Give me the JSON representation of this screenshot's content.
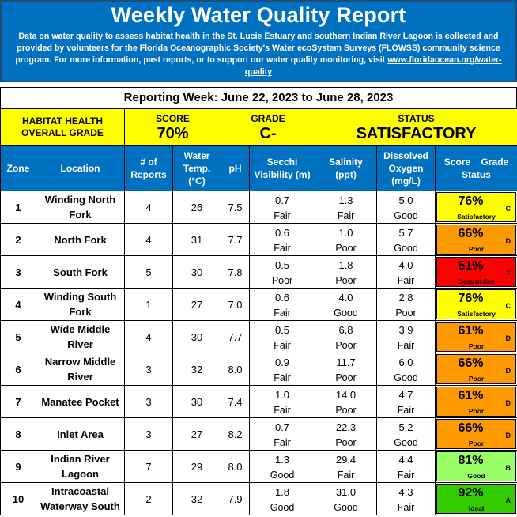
{
  "header": {
    "title": "Weekly Water Quality Report",
    "description": "Data on water quality to assess habitat health in the St. Lucie Estuary and southern Indian River Lagoon is collected and provided by volunteers for the Florida Oceanographic Society's Water ecoSystem Surveys (FLOWSS) community science program.  For more information, past reports, or to support our water quality monitoring, visit",
    "link_text": "www.floridaocean.org/water-quality"
  },
  "reporting_week": "Reporting Week: June 22, 2023 to June 28, 2023",
  "summary": {
    "habitat_label_1": "HABITAT HEALTH",
    "habitat_label_2": "OVERALL GRADE",
    "score_label": "SCORE",
    "score_value": "70%",
    "grade_label": "GRADE",
    "grade_value": "C-",
    "status_label": "STATUS",
    "status_value": "SATISFACTORY"
  },
  "columns": {
    "zone": "Zone",
    "location": "Location",
    "reports_1": "# of",
    "reports_2": "Reports",
    "temp_1": "Water",
    "temp_2": "Temp.",
    "temp_3": "(°C)",
    "ph": "pH",
    "secchi_1": "Secchi",
    "secchi_2": "Visibility (m)",
    "salinity_1": "Salinity",
    "salinity_2": "(ppt)",
    "do_1": "Dissolved",
    "do_2": "Oxygen",
    "do_3": "(mg/L)",
    "score_status_1": "Score",
    "score_status_2": "Grade",
    "score_status_3": "Status"
  },
  "colors": {
    "header_blue": "#0070c0",
    "summary_yellow": "#ffff00",
    "satisfactory": "#ffff00",
    "poor": "#ff9900",
    "destructive": "#ff0000",
    "good": "#99ff66",
    "ideal": "#33cc00"
  },
  "rows": [
    {
      "zone": "1",
      "location": "Winding North Fork",
      "reports": "4",
      "temp": "26",
      "ph": "7.5",
      "secchi": "0.7",
      "secchi_rating": "Fair",
      "salinity": "1.3",
      "salinity_rating": "Fair",
      "do": "5.0",
      "do_rating": "Good",
      "score": "76%",
      "grade": "C",
      "status": "Satisfactory",
      "color": "#ffff00"
    },
    {
      "zone": "2",
      "location": "North Fork",
      "reports": "4",
      "temp": "31",
      "ph": "7.7",
      "secchi": "0.6",
      "secchi_rating": "Fair",
      "salinity": "1.0",
      "salinity_rating": "Poor",
      "do": "5.7",
      "do_rating": "Good",
      "score": "66%",
      "grade": "D",
      "status": "Poor",
      "color": "#ff9900"
    },
    {
      "zone": "3",
      "location": "South Fork",
      "reports": "5",
      "temp": "30",
      "ph": "7.8",
      "secchi": "0.5",
      "secchi_rating": "Poor",
      "salinity": "1.8",
      "salinity_rating": "Poor",
      "do": "4.0",
      "do_rating": "Fair",
      "score": "51%",
      "grade": "F",
      "status": "Destructive",
      "color": "#ff0000"
    },
    {
      "zone": "4",
      "location": "Winding South Fork",
      "reports": "1",
      "temp": "27",
      "ph": "7.0",
      "secchi": "0.6",
      "secchi_rating": "Fair",
      "salinity": "4.0",
      "salinity_rating": "Good",
      "do": "2.8",
      "do_rating": "Poor",
      "score": "76%",
      "grade": "C",
      "status": "Satisfactory",
      "color": "#ffff00"
    },
    {
      "zone": "5",
      "location": "Wide Middle River",
      "reports": "4",
      "temp": "30",
      "ph": "7.7",
      "secchi": "0.5",
      "secchi_rating": "Fair",
      "salinity": "6.8",
      "salinity_rating": "Poor",
      "do": "3.9",
      "do_rating": "Fair",
      "score": "61%",
      "grade": "D",
      "status": "Poor",
      "color": "#ff9900"
    },
    {
      "zone": "6",
      "location": "Narrow Middle River",
      "reports": "3",
      "temp": "32",
      "ph": "8.0",
      "secchi": "0.9",
      "secchi_rating": "Fair",
      "salinity": "11.7",
      "salinity_rating": "Poor",
      "do": "6.0",
      "do_rating": "Good",
      "score": "66%",
      "grade": "D",
      "status": "Poor",
      "color": "#ff9900"
    },
    {
      "zone": "7",
      "location": "Manatee Pocket",
      "reports": "3",
      "temp": "30",
      "ph": "7.4",
      "secchi": "1.0",
      "secchi_rating": "Fair",
      "salinity": "14.0",
      "salinity_rating": "Poor",
      "do": "4.7",
      "do_rating": "Fair",
      "score": "61%",
      "grade": "D",
      "status": "Poor",
      "color": "#ff9900"
    },
    {
      "zone": "8",
      "location": "Inlet Area",
      "reports": "3",
      "temp": "27",
      "ph": "8.2",
      "secchi": "0.7",
      "secchi_rating": "Fair",
      "salinity": "22.3",
      "salinity_rating": "Poor",
      "do": "5.2",
      "do_rating": "Good",
      "score": "66%",
      "grade": "D",
      "status": "Poor",
      "color": "#ff9900"
    },
    {
      "zone": "9",
      "location": "Indian River Lagoon",
      "reports": "7",
      "temp": "29",
      "ph": "8.0",
      "secchi": "1.3",
      "secchi_rating": "Good",
      "salinity": "29.4",
      "salinity_rating": "Fair",
      "do": "4.4",
      "do_rating": "Fair",
      "score": "81%",
      "grade": "B",
      "status": "Good",
      "color": "#99ff66"
    },
    {
      "zone": "10",
      "location": "Intracoastal Waterway South",
      "reports": "2",
      "temp": "32",
      "ph": "7.9",
      "secchi": "1.8",
      "secchi_rating": "Good",
      "salinity": "31.0",
      "salinity_rating": "Good",
      "do": "4.3",
      "do_rating": "Fair",
      "score": "92%",
      "grade": "A",
      "status": "Ideal",
      "color": "#33cc00"
    }
  ]
}
